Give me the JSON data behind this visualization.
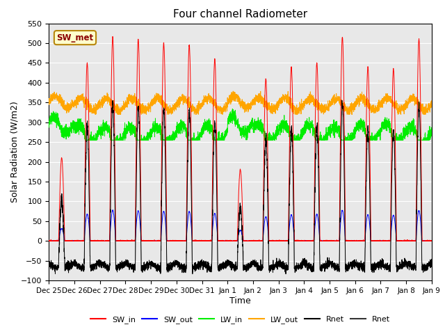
{
  "title": "Four channel Radiometer",
  "xlabel": "Time",
  "ylabel": "Solar Radiation (W/m2)",
  "ylim": [
    -100,
    550
  ],
  "annotation_text": "SW_met",
  "annotation_color": "#8B0000",
  "annotation_bg": "#FFFFCC",
  "annotation_border": "#B8860B",
  "colors": {
    "SW_in": "#FF0000",
    "SW_out": "#0000FF",
    "LW_in": "#00EE00",
    "LW_out": "#FFA500",
    "Rnet_black": "#000000",
    "Rnet_dark": "#333333"
  },
  "day_labels": [
    "Dec 25",
    "Dec 26",
    "Dec 27",
    "Dec 28",
    "Dec 29",
    "Dec 30",
    "Dec 31",
    "Jan 1",
    "Jan 2",
    "Jan 3",
    "Jan 4",
    "Jan 5",
    "Jan 6",
    "Jan 7",
    "Jan 8",
    "Jan 9"
  ],
  "num_days": 15,
  "ppd": 288,
  "background_color": "#E8E8E8",
  "fig_width": 6.4,
  "fig_height": 4.8,
  "dpi": 100
}
